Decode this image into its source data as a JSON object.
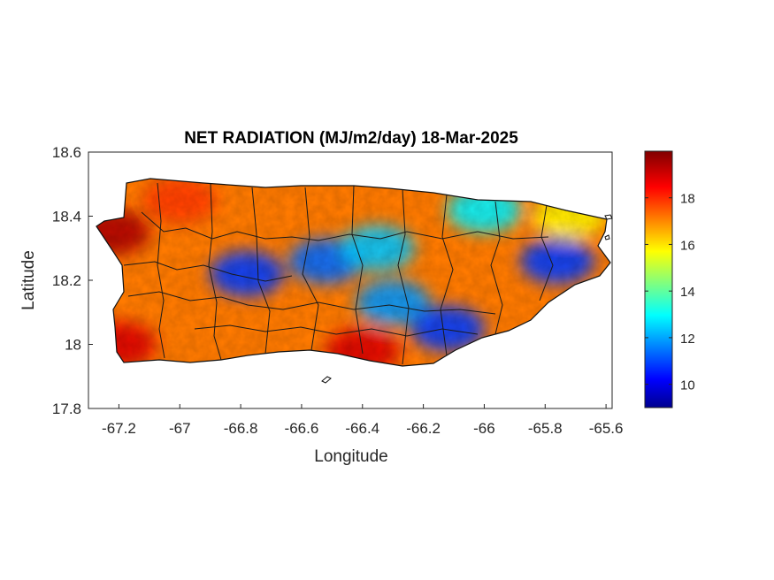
{
  "chart_data": {
    "type": "heatmap",
    "title": "NET RADIATION (MJ/m2/day) 18-Mar-2025",
    "xlabel": "Longitude",
    "ylabel": "Latitude",
    "xlim": [
      -67.3,
      -65.58
    ],
    "ylim": [
      17.8,
      18.6
    ],
    "x_ticks": [
      -67.2,
      -67,
      -66.8,
      -66.6,
      -66.4,
      -66.2,
      -66,
      -65.8,
      -65.6
    ],
    "x_tick_labels": [
      "-67.2",
      "-67",
      "-66.8",
      "-66.6",
      "-66.4",
      "-66.2",
      "-66",
      "-65.8",
      "-65.6"
    ],
    "y_ticks": [
      17.8,
      18,
      18.2,
      18.4,
      18.6
    ],
    "y_tick_labels": [
      "17.8",
      "18",
      "18.2",
      "18.4",
      "18.6"
    ],
    "colorbar": {
      "colormap": "jet",
      "range": [
        9,
        20
      ],
      "ticks": [
        10,
        12,
        14,
        16,
        18
      ],
      "tick_labels": [
        "10",
        "12",
        "14",
        "16",
        "18"
      ],
      "colors": [
        "#00008f",
        "#0000ff",
        "#00ffff",
        "#ffff00",
        "#ff0000",
        "#800000"
      ]
    },
    "grid": false,
    "regions": [
      {
        "lon": -67.22,
        "lat": 18.35,
        "value": 19.5
      },
      {
        "lon": -67.2,
        "lat": 18.0,
        "value": 19.0
      },
      {
        "lon": -67.0,
        "lat": 18.45,
        "value": 18.0
      },
      {
        "lon": -66.78,
        "lat": 18.22,
        "value": 11.0
      },
      {
        "lon": -66.52,
        "lat": 18.26,
        "value": 11.5
      },
      {
        "lon": -66.35,
        "lat": 18.3,
        "value": 12.5
      },
      {
        "lon": -66.3,
        "lat": 18.13,
        "value": 12.0
      },
      {
        "lon": -66.12,
        "lat": 18.05,
        "value": 11.0
      },
      {
        "lon": -66.0,
        "lat": 18.42,
        "value": 13.0
      },
      {
        "lon": -65.76,
        "lat": 18.26,
        "value": 11.0
      },
      {
        "lon": -66.4,
        "lat": 17.98,
        "value": 19.0
      },
      {
        "lon": -65.72,
        "lat": 18.4,
        "value": 16.0
      }
    ]
  }
}
